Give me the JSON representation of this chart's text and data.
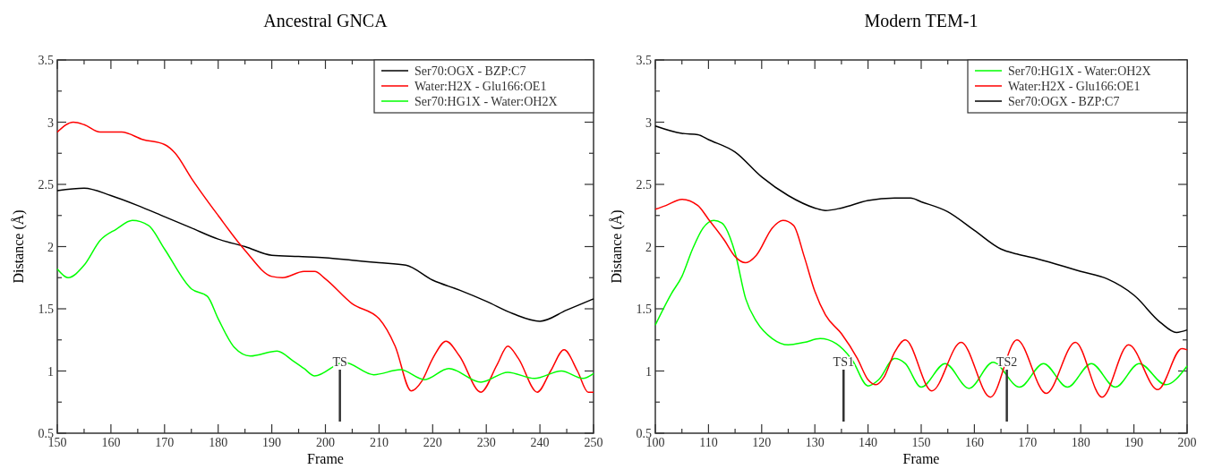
{
  "chart_data": [
    {
      "type": "line",
      "title": "Ancestral GNCA",
      "xlabel": "Frame",
      "ylabel": "Distance (Å)",
      "xlim": [
        150,
        250
      ],
      "ylim": [
        0.5,
        3.5
      ],
      "xticks": [
        150,
        {
          "value": 155,
          "label": null
        },
        160,
        {
          "value": 165,
          "label": null
        },
        170,
        {
          "value": 175,
          "label": null
        },
        180,
        {
          "value": 185,
          "label": null
        },
        190,
        {
          "value": 195,
          "label": null
        },
        200,
        {
          "value": 205,
          "label": null
        },
        210,
        {
          "value": 215,
          "label": null
        },
        220,
        {
          "value": 225,
          "label": null
        },
        230,
        {
          "value": 235,
          "label": null
        },
        240,
        {
          "value": 245,
          "label": null
        },
        250
      ],
      "yticks": [
        0.5,
        {
          "value": 0.75,
          "label": null
        },
        1,
        {
          "value": 1.25,
          "label": null
        },
        1.5,
        {
          "value": 1.75,
          "label": null
        },
        2,
        {
          "value": 2.25,
          "label": null
        },
        2.5,
        {
          "value": 2.75,
          "label": null
        },
        3,
        {
          "value": 3.25,
          "label": null
        },
        3.5
      ],
      "legend": "top right",
      "grid": false,
      "ref_lines": [
        {
          "axis": "x",
          "value": 202.7,
          "label": "TS",
          "color": "#333333"
        }
      ],
      "series": [
        {
          "name": "Ser70:OGX - BZP:C7",
          "color": "#000000",
          "x": [
            150,
            155,
            160,
            165,
            170,
            175,
            180,
            185,
            190,
            195,
            200,
            205,
            210,
            215,
            220,
            225,
            230,
            235,
            240,
            245,
            250
          ],
          "values": [
            2.45,
            2.47,
            2.41,
            2.33,
            2.24,
            2.15,
            2.06,
            2.0,
            1.93,
            1.92,
            1.91,
            1.89,
            1.87,
            1.85,
            1.73,
            1.65,
            1.56,
            1.46,
            1.4,
            1.49,
            1.58
          ]
        },
        {
          "name": "Water:H2X - Glu166:OE1",
          "color": "#ff0000",
          "x": [
            150,
            153,
            155,
            158,
            162,
            166,
            170,
            172,
            175,
            180,
            185,
            190,
            192,
            196,
            198,
            200,
            205,
            210,
            213,
            216,
            218,
            220,
            222.5,
            225,
            229,
            232,
            234,
            236,
            239.5,
            242,
            244.5,
            247,
            249,
            250
          ],
          "values": [
            2.92,
            3.0,
            2.98,
            2.92,
            2.92,
            2.86,
            2.82,
            2.75,
            2.55,
            2.25,
            1.97,
            1.76,
            1.75,
            1.8,
            1.8,
            1.74,
            1.54,
            1.42,
            1.2,
            0.84,
            0.92,
            1.1,
            1.24,
            1.12,
            0.83,
            1.05,
            1.2,
            1.1,
            0.83,
            1.0,
            1.17,
            1.0,
            0.83,
            0.83
          ]
        },
        {
          "name": "Ser70:HG1X - Water:OH2X",
          "color": "#00ff00",
          "x": [
            150,
            152,
            155,
            158,
            161,
            164,
            167,
            170,
            175,
            178,
            180,
            183,
            186,
            191,
            194,
            196,
            198,
            203.5,
            209,
            214,
            218.5,
            223,
            229,
            234,
            239,
            244,
            248,
            250
          ],
          "values": [
            1.82,
            1.75,
            1.85,
            2.05,
            2.14,
            2.21,
            2.17,
            1.98,
            1.66,
            1.6,
            1.42,
            1.19,
            1.12,
            1.16,
            1.08,
            1.02,
            0.96,
            1.07,
            0.97,
            1.01,
            0.93,
            1.02,
            0.91,
            0.99,
            0.94,
            1.0,
            0.94,
            0.98
          ]
        }
      ]
    },
    {
      "type": "line",
      "title": "Modern TEM-1",
      "xlabel": "Frame",
      "ylabel": "Distance (Å)",
      "xlim": [
        100,
        200
      ],
      "ylim": [
        0.5,
        3.5
      ],
      "xticks": [
        100,
        {
          "value": 105,
          "label": null
        },
        110,
        {
          "value": 115,
          "label": null
        },
        120,
        {
          "value": 125,
          "label": null
        },
        130,
        {
          "value": 135,
          "label": null
        },
        140,
        {
          "value": 145,
          "label": null
        },
        150,
        {
          "value": 155,
          "label": null
        },
        160,
        {
          "value": 165,
          "label": null
        },
        170,
        {
          "value": 175,
          "label": null
        },
        180,
        {
          "value": 185,
          "label": null
        },
        190,
        {
          "value": 195,
          "label": null
        },
        200
      ],
      "yticks": [
        0.5,
        {
          "value": 0.75,
          "label": null
        },
        1,
        {
          "value": 1.25,
          "label": null
        },
        1.5,
        {
          "value": 1.75,
          "label": null
        },
        2,
        {
          "value": 2.25,
          "label": null
        },
        2.5,
        {
          "value": 2.75,
          "label": null
        },
        3,
        {
          "value": 3.25,
          "label": null
        },
        3.5
      ],
      "legend": "top right",
      "grid": false,
      "ref_lines": [
        {
          "axis": "x",
          "value": 135.4,
          "label": "TS1",
          "color": "#333333"
        },
        {
          "axis": "x",
          "value": 166.1,
          "label": "TS2",
          "color": "#333333"
        }
      ],
      "series": [
        {
          "name": "Ser70:HG1X - Water:OH2X",
          "color": "#00ff00",
          "x": [
            100,
            103,
            105,
            107,
            109,
            111,
            112.5,
            115,
            117,
            119,
            122,
            125,
            128,
            131,
            134,
            137,
            140,
            142,
            145,
            147,
            150,
            154.5,
            159,
            163.5,
            168.5,
            173,
            177.5,
            182,
            186.5,
            191,
            196,
            200
          ],
          "values": [
            1.37,
            1.62,
            1.76,
            1.98,
            2.15,
            2.21,
            2.19,
            1.95,
            1.58,
            1.4,
            1.26,
            1.21,
            1.23,
            1.26,
            1.22,
            1.09,
            0.88,
            0.93,
            1.1,
            1.06,
            0.87,
            1.06,
            0.86,
            1.07,
            0.87,
            1.06,
            0.87,
            1.06,
            0.87,
            1.06,
            0.89,
            1.04
          ]
        },
        {
          "name": "Water:H2X - Glu166:OE1",
          "color": "#ff0000",
          "x": [
            100,
            102,
            105,
            108,
            110,
            113,
            115,
            117,
            119,
            122,
            124,
            126,
            128,
            130,
            132,
            135,
            138,
            140,
            141.5,
            143,
            145,
            147,
            152,
            157.5,
            163,
            168,
            173.5,
            179,
            184,
            189,
            194.5,
            199,
            200
          ],
          "values": [
            2.3,
            2.33,
            2.38,
            2.33,
            2.22,
            2.05,
            1.92,
            1.87,
            1.93,
            2.15,
            2.21,
            2.17,
            1.92,
            1.64,
            1.45,
            1.3,
            1.1,
            0.93,
            0.89,
            0.95,
            1.15,
            1.25,
            0.84,
            1.23,
            0.79,
            1.25,
            0.82,
            1.23,
            0.79,
            1.21,
            0.85,
            1.18,
            1.17
          ]
        },
        {
          "name": "Ser70:OGX - BZP:C7",
          "color": "#000000",
          "x": [
            100,
            105,
            108,
            110,
            115,
            120,
            125,
            130,
            132,
            135,
            140,
            145,
            148,
            150,
            155,
            160,
            165,
            168,
            172,
            180,
            185,
            190,
            195,
            198,
            200
          ],
          "values": [
            2.97,
            2.91,
            2.9,
            2.86,
            2.76,
            2.56,
            2.41,
            2.31,
            2.29,
            2.31,
            2.37,
            2.39,
            2.39,
            2.36,
            2.28,
            2.13,
            1.98,
            1.94,
            1.9,
            1.8,
            1.74,
            1.61,
            1.39,
            1.31,
            1.33
          ]
        }
      ]
    }
  ]
}
